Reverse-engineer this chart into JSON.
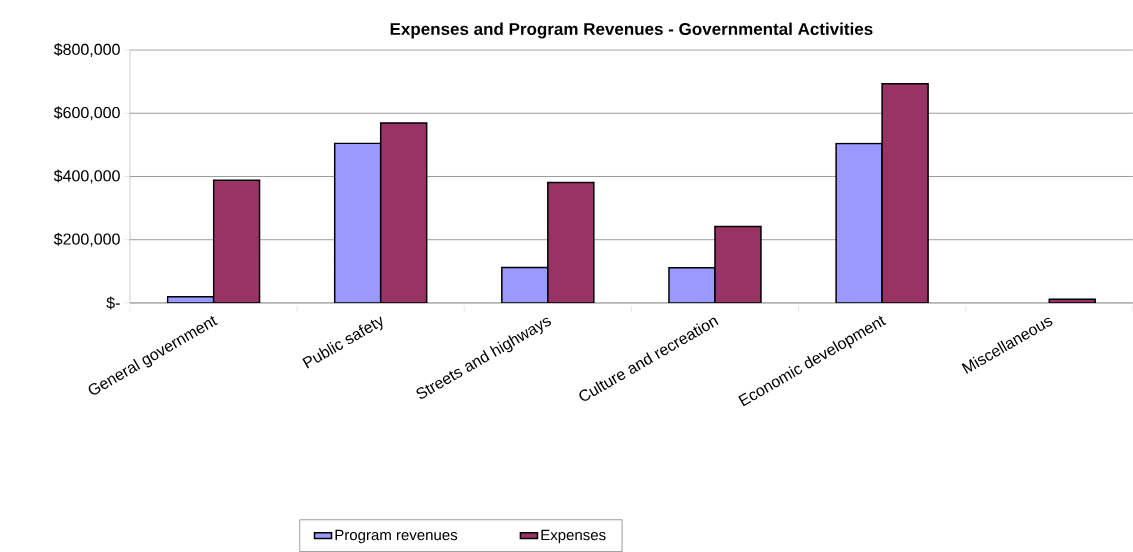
{
  "chart_data": {
    "type": "bar",
    "title": "Expenses and Program Revenues - Governmental Activities",
    "categories": [
      "General government",
      "Public safety",
      "Streets and highways",
      "Culture and recreation",
      "Economic development",
      "Miscellaneous"
    ],
    "series": [
      {
        "name": "Program revenues",
        "color": "#9999ff",
        "values": [
          20000,
          505000,
          112000,
          111000,
          504000,
          null
        ]
      },
      {
        "name": "Expenses",
        "color": "#993366",
        "values": [
          388000,
          569000,
          381000,
          242000,
          693000,
          12000
        ]
      }
    ],
    "ylim": [
      0,
      800000
    ],
    "yticks": [
      {
        "value": 0,
        "label": "$-"
      },
      {
        "value": 200000,
        "label": "$200,000"
      },
      {
        "value": 400000,
        "label": "$400,000"
      },
      {
        "value": 600000,
        "label": "$600,000"
      },
      {
        "value": 800000,
        "label": "$800,000"
      }
    ],
    "grid": "y",
    "legend": "bottom"
  }
}
